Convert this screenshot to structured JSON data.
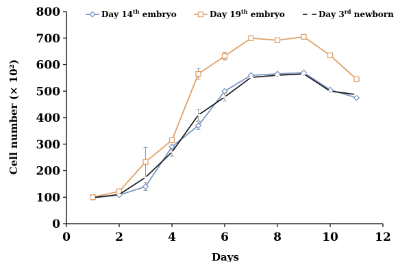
{
  "chart_data": {
    "type": "line",
    "xlabel": "Days",
    "ylabel": "Cell number (× 10²)",
    "xlim": [
      0,
      12
    ],
    "ylim": [
      0,
      800
    ],
    "xticks": [
      0,
      2,
      4,
      6,
      8,
      10,
      12
    ],
    "yticks": [
      0,
      100,
      200,
      300,
      400,
      500,
      600,
      700,
      800
    ],
    "grid": false,
    "legend_position": "top",
    "x": [
      1,
      2,
      3,
      4,
      5,
      6,
      7,
      8,
      9,
      10,
      11
    ],
    "series": [
      {
        "name_prefix": "Day 14",
        "name_sup": "th",
        "name_suffix": " embryo",
        "color": "#7c97c6",
        "marker": "diamond",
        "values": [
          98,
          108,
          140,
          290,
          370,
          500,
          560,
          565,
          570,
          505,
          475
        ],
        "errors": [
          0,
          0,
          15,
          0,
          15,
          0,
          0,
          0,
          0,
          0,
          0
        ]
      },
      {
        "name_prefix": "Day 19",
        "name_sup": "th",
        "name_suffix": " embryo",
        "color": "#e0a066",
        "marker": "square",
        "values": [
          100,
          122,
          233,
          315,
          565,
          632,
          700,
          692,
          705,
          635,
          545
        ],
        "errors": [
          0,
          0,
          55,
          0,
          20,
          15,
          0,
          0,
          0,
          0,
          0
        ]
      },
      {
        "name_prefix": "Day 3",
        "name_sup": "rd",
        "name_suffix": " newborn",
        "color": "#1a1a1a",
        "marker": "dash",
        "values": [
          98,
          110,
          175,
          270,
          410,
          478,
          552,
          560,
          565,
          500,
          487
        ],
        "errors": [
          0,
          0,
          0,
          15,
          20,
          15,
          0,
          0,
          0,
          0,
          0
        ]
      }
    ]
  }
}
